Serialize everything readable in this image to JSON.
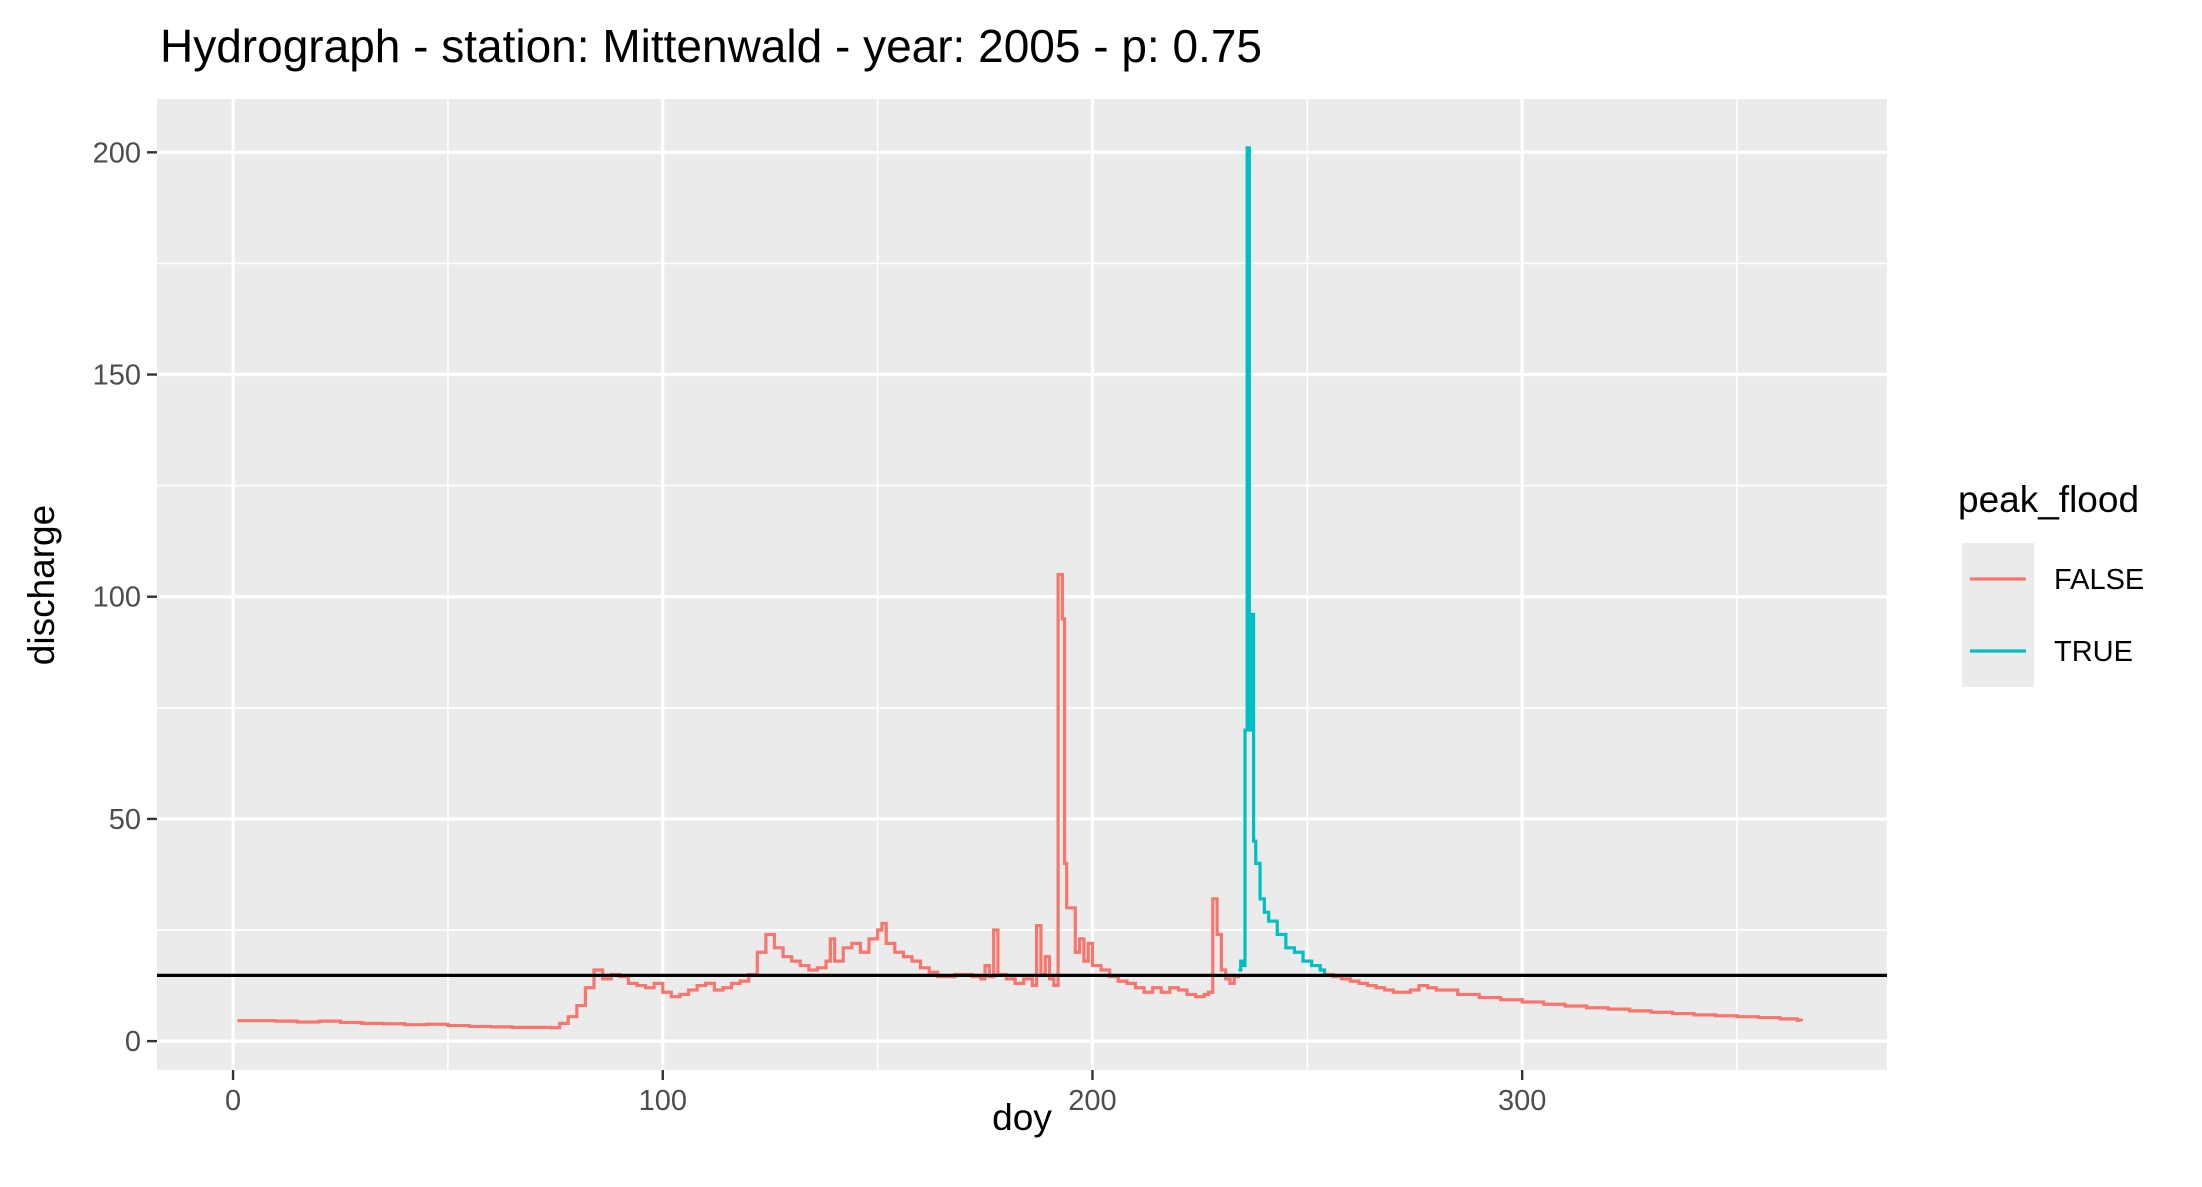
{
  "chart_data": {
    "type": "line",
    "title": "Hydrograph - station: Mittenwald - year: 2005 - p: 0.75",
    "xlabel": "doy",
    "ylabel": "discharge",
    "xlim": [
      -17.7,
      384.9
    ],
    "ylim": [
      -6.5,
      212
    ],
    "x_ticks": [
      0,
      100,
      200,
      300
    ],
    "y_ticks": [
      0,
      50,
      100,
      150,
      200
    ],
    "grid": true,
    "threshold_line": 14.8,
    "legend": {
      "title": "peak_flood",
      "placement": "right",
      "entries": [
        {
          "label": "FALSE",
          "color": "#F8766D"
        },
        {
          "label": "TRUE",
          "color": "#00BFC4"
        }
      ]
    },
    "series": [
      {
        "name": "FALSE",
        "color": "#F8766D",
        "points": [
          [
            1,
            4.6
          ],
          [
            5,
            4.6
          ],
          [
            10,
            4.5
          ],
          [
            15,
            4.3
          ],
          [
            20,
            4.5
          ],
          [
            25,
            4.2
          ],
          [
            30,
            4.0
          ],
          [
            35,
            3.9
          ],
          [
            40,
            3.7
          ],
          [
            45,
            3.8
          ],
          [
            50,
            3.5
          ],
          [
            55,
            3.3
          ],
          [
            60,
            3.2
          ],
          [
            65,
            3.1
          ],
          [
            70,
            3.1
          ],
          [
            74,
            3.0
          ],
          [
            76,
            4.0
          ],
          [
            78,
            5.5
          ],
          [
            80,
            8.0
          ],
          [
            82,
            12.0
          ],
          [
            84,
            16.0
          ],
          [
            86,
            14.0
          ],
          [
            88,
            15.0
          ],
          [
            90,
            14.5
          ],
          [
            92,
            13.0
          ],
          [
            94,
            12.5
          ],
          [
            96,
            12.0
          ],
          [
            98,
            13.0
          ],
          [
            100,
            11.0
          ],
          [
            102,
            10.0
          ],
          [
            104,
            10.5
          ],
          [
            106,
            11.5
          ],
          [
            108,
            12.5
          ],
          [
            110,
            13.0
          ],
          [
            112,
            11.5
          ],
          [
            114,
            12.0
          ],
          [
            116,
            13.0
          ],
          [
            118,
            13.5
          ],
          [
            120,
            15.0
          ],
          [
            122,
            20.0
          ],
          [
            124,
            24.0
          ],
          [
            126,
            21.0
          ],
          [
            128,
            19.0
          ],
          [
            130,
            18.0
          ],
          [
            132,
            17.0
          ],
          [
            134,
            16.0
          ],
          [
            136,
            16.5
          ],
          [
            138,
            18.0
          ],
          [
            139,
            23.0
          ],
          [
            140,
            18.0
          ],
          [
            142,
            21.0
          ],
          [
            144,
            22.0
          ],
          [
            146,
            20.0
          ],
          [
            148,
            23.0
          ],
          [
            150,
            25.0
          ],
          [
            151,
            26.5
          ],
          [
            152,
            22.0
          ],
          [
            154,
            20.0
          ],
          [
            156,
            19.0
          ],
          [
            158,
            18.0
          ],
          [
            160,
            16.5
          ],
          [
            162,
            15.5
          ],
          [
            164,
            14.5
          ],
          [
            166,
            14.5
          ],
          [
            168,
            15.0
          ],
          [
            170,
            15.0
          ],
          [
            172,
            14.5
          ],
          [
            174,
            14.0
          ],
          [
            175,
            17.0
          ],
          [
            176,
            14.5
          ],
          [
            177,
            25.0
          ],
          [
            178,
            15.0
          ],
          [
            180,
            14.0
          ],
          [
            182,
            13.0
          ],
          [
            184,
            14.0
          ],
          [
            186,
            12.5
          ],
          [
            187,
            26.0
          ],
          [
            188,
            15.0
          ],
          [
            189,
            19.0
          ],
          [
            190,
            14.0
          ],
          [
            191,
            12.5
          ],
          [
            192,
            105.0
          ],
          [
            193,
            95.0
          ],
          [
            193.5,
            40.0
          ],
          [
            194,
            30.0
          ],
          [
            196,
            20.0
          ],
          [
            197,
            23.0
          ],
          [
            198,
            18.0
          ],
          [
            199,
            22.0
          ],
          [
            200,
            17.0
          ],
          [
            202,
            16.0
          ],
          [
            204,
            14.5
          ],
          [
            206,
            13.5
          ],
          [
            208,
            13.0
          ],
          [
            210,
            12.0
          ],
          [
            212,
            11.0
          ],
          [
            214,
            12.0
          ],
          [
            216,
            11.0
          ],
          [
            218,
            12.0
          ],
          [
            220,
            11.5
          ],
          [
            222,
            10.5
          ],
          [
            224,
            10.0
          ],
          [
            226,
            10.5
          ],
          [
            227,
            11.0
          ],
          [
            228,
            32.0
          ],
          [
            229,
            24.0
          ],
          [
            230,
            16.0
          ],
          [
            231,
            14.0
          ],
          [
            232,
            13.0
          ],
          [
            233,
            14.5
          ],
          [
            234,
            15.0
          ]
        ]
      },
      {
        "name": "TRUE",
        "color": "#00BFC4",
        "points": [
          [
            234,
            16.0
          ],
          [
            234.5,
            18.0
          ],
          [
            235,
            17.0
          ],
          [
            235.5,
            70.0
          ],
          [
            236,
            201.0
          ],
          [
            236.5,
            70.0
          ],
          [
            237,
            96.0
          ],
          [
            237.5,
            45.0
          ],
          [
            238,
            40.0
          ],
          [
            239,
            32.0
          ],
          [
            240,
            29.0
          ],
          [
            241,
            27.0
          ],
          [
            243,
            24.0
          ],
          [
            245,
            21.0
          ],
          [
            247,
            20.0
          ],
          [
            249,
            18.0
          ],
          [
            251,
            17.0
          ],
          [
            253,
            16.0
          ],
          [
            254,
            15.0
          ]
        ]
      },
      {
        "name": "FALSE",
        "color": "#F8766D",
        "points": [
          [
            254,
            15.0
          ],
          [
            256,
            14.5
          ],
          [
            258,
            14.0
          ],
          [
            260,
            13.5
          ],
          [
            262,
            13.0
          ],
          [
            264,
            12.5
          ],
          [
            266,
            12.0
          ],
          [
            268,
            11.5
          ],
          [
            270,
            11.0
          ],
          [
            272,
            11.0
          ],
          [
            274,
            11.5
          ],
          [
            276,
            12.5
          ],
          [
            278,
            12.0
          ],
          [
            280,
            11.5
          ],
          [
            285,
            10.5
          ],
          [
            290,
            9.8
          ],
          [
            295,
            9.3
          ],
          [
            300,
            8.8
          ],
          [
            305,
            8.3
          ],
          [
            310,
            7.9
          ],
          [
            315,
            7.5
          ],
          [
            320,
            7.2
          ],
          [
            325,
            6.8
          ],
          [
            330,
            6.5
          ],
          [
            335,
            6.2
          ],
          [
            340,
            5.9
          ],
          [
            345,
            5.7
          ],
          [
            350,
            5.5
          ],
          [
            355,
            5.3
          ],
          [
            360,
            5.0
          ],
          [
            364,
            4.7
          ],
          [
            365,
            4.5
          ]
        ]
      }
    ]
  }
}
